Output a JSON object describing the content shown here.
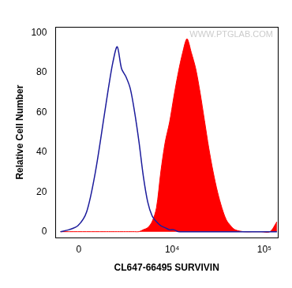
{
  "chart_data": {
    "type": "line",
    "x_label": "CL647-66495 SURVIVIN",
    "y_label": "Relative Cell Number",
    "annotations": [
      "WWW.PTGLAB.COM"
    ],
    "x": [
      -930,
      -480,
      -40,
      390,
      840,
      1330,
      1590,
      1880,
      2190,
      2520,
      2880,
      3280,
      3720,
      4200,
      4720,
      5310,
      5960,
      6680,
      7470,
      8360,
      9350,
      10440,
      11660,
      13020,
      14530,
      16210,
      18080,
      20170,
      22500,
      25090,
      27980,
      31190,
      34790,
      38790,
      43240,
      48210,
      59930,
      74500,
      92590,
      115100,
      137000
    ],
    "series": [
      {
        "type": "line",
        "color": "#1c1c9c",
        "values": [
          0,
          1,
          3,
          10,
          30,
          58,
          72,
          85,
          93,
          82,
          78,
          72,
          60,
          45,
          28,
          15,
          8,
          5,
          3,
          2,
          1,
          1,
          0,
          0,
          0,
          0,
          0,
          0,
          0,
          0,
          0,
          0,
          0,
          0,
          0,
          0,
          0,
          0,
          0,
          0,
          0
        ]
      },
      {
        "type": "area",
        "color": "#ff0000",
        "values": [
          0,
          0,
          0,
          0,
          0,
          0,
          0,
          0,
          0,
          0,
          0,
          0,
          0,
          0,
          1,
          2,
          5,
          12,
          30,
          45,
          55,
          68,
          80,
          90,
          97,
          90,
          82,
          70,
          56,
          42,
          30,
          20,
          12,
          6,
          3,
          1,
          0,
          0,
          0,
          0,
          5
        ]
      }
    ],
    "xlim": [
      -1200,
      140000
    ],
    "xticks": [
      0,
      {
        "value": 10000,
        "label": "10⁴"
      },
      {
        "value": 100000,
        "label": "10⁵"
      }
    ],
    "ylim": [
      -3,
      103
    ],
    "yticks": [
      0,
      20,
      40,
      60,
      80,
      100
    ],
    "log": "x",
    "grid": false
  }
}
